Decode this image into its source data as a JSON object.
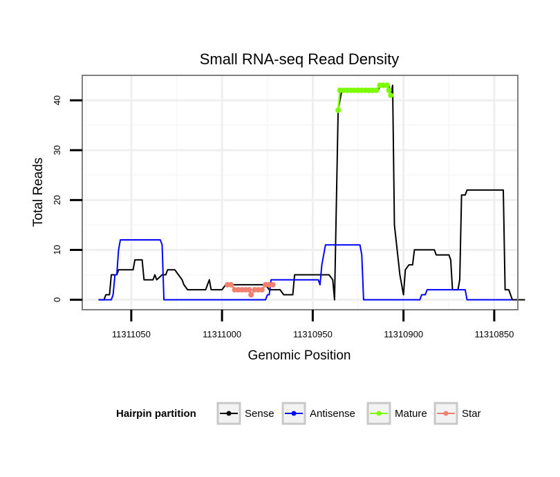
{
  "chart_data": {
    "type": "line",
    "title": "Small RNA-seq Read Density",
    "xlabel": "Genomic Position",
    "ylabel": "Total Reads",
    "xlim": [
      11311077,
      11310837
    ],
    "ylim": [
      -2,
      45
    ],
    "x_reversed": true,
    "x_ticks": [
      11311050,
      11311000,
      11310950,
      11310900,
      11310850
    ],
    "x_tick_labels": [
      "11311050",
      "11311000",
      "11310950",
      "11310900",
      "11310850"
    ],
    "y_ticks": [
      0,
      10,
      20,
      30,
      40
    ],
    "y_tick_labels": [
      "0",
      "10",
      "20",
      "30",
      "40"
    ],
    "grid": true,
    "legend": {
      "title": "Hairpin partition",
      "position": "bottom",
      "entries": [
        "Sense",
        "Antisense",
        "Mature",
        "Star"
      ]
    },
    "series": [
      {
        "name": "Sense",
        "color": "#000000",
        "markers": false,
        "points": [
          [
            11311068,
            0
          ],
          [
            11311065,
            0
          ],
          [
            11311064,
            1
          ],
          [
            11311062,
            1
          ],
          [
            11311061,
            5
          ],
          [
            11311058,
            5
          ],
          [
            11311057,
            6
          ],
          [
            11311049,
            6
          ],
          [
            11311048,
            8
          ],
          [
            11311044,
            8
          ],
          [
            11311043,
            4
          ],
          [
            11311038,
            4
          ],
          [
            11311037,
            5
          ],
          [
            11311036,
            4
          ],
          [
            11311033,
            5
          ],
          [
            11311031,
            5
          ],
          [
            11311030,
            6
          ],
          [
            11311026,
            6
          ],
          [
            11311024,
            5
          ],
          [
            11311022,
            4
          ],
          [
            11311021,
            3
          ],
          [
            11311019,
            2
          ],
          [
            11311009,
            2
          ],
          [
            11311008,
            3
          ],
          [
            11311007,
            4
          ],
          [
            11311006,
            2
          ],
          [
            11311000,
            2
          ],
          [
            11310998,
            3
          ],
          [
            11310976,
            3
          ],
          [
            11310974,
            2
          ],
          [
            11310968,
            2
          ],
          [
            11310966,
            1
          ],
          [
            11310961,
            1
          ],
          [
            11310960,
            5
          ],
          [
            11310950,
            5
          ],
          [
            11310941,
            5
          ],
          [
            11310939,
            4
          ],
          [
            11310938,
            0
          ],
          [
            11310936,
            38
          ],
          [
            11310934,
            42
          ],
          [
            11310914,
            42
          ],
          [
            11310913,
            43
          ],
          [
            11310908,
            43
          ],
          [
            11310907,
            41
          ],
          [
            11310906,
            43
          ],
          [
            11310905,
            15
          ],
          [
            11310902,
            5
          ],
          [
            11310900,
            1
          ],
          [
            11310899,
            6
          ],
          [
            11310897,
            7
          ],
          [
            11310895,
            7
          ],
          [
            11310894,
            10
          ],
          [
            11310883,
            10
          ],
          [
            11310882,
            9
          ],
          [
            11310875,
            9
          ],
          [
            11310874,
            8
          ],
          [
            11310873,
            2
          ],
          [
            11310870,
            2
          ],
          [
            11310869,
            4
          ],
          [
            11310868,
            21
          ],
          [
            11310866,
            21
          ],
          [
            11310865,
            22
          ],
          [
            11310845,
            22
          ],
          [
            11310844,
            2
          ],
          [
            11310842,
            2
          ],
          [
            11310840,
            0
          ],
          [
            11310833,
            0
          ]
        ]
      },
      {
        "name": "Antisense",
        "color": "#0000ff",
        "markers": false,
        "points": [
          [
            11311068,
            0
          ],
          [
            11311061,
            0
          ],
          [
            11311060,
            1
          ],
          [
            11311059,
            5
          ],
          [
            11311058,
            5
          ],
          [
            11311057,
            10
          ],
          [
            11311056,
            12
          ],
          [
            11311034,
            12
          ],
          [
            11311033,
            11
          ],
          [
            11311032,
            0
          ],
          [
            11310976,
            0
          ],
          [
            11310975,
            1
          ],
          [
            11310974,
            1
          ],
          [
            11310973,
            4
          ],
          [
            11310947,
            4
          ],
          [
            11310946,
            3
          ],
          [
            11310945,
            7
          ],
          [
            11310943,
            11
          ],
          [
            11310924,
            11
          ],
          [
            11310923,
            9
          ],
          [
            11310922,
            0
          ],
          [
            11310891,
            0
          ],
          [
            11310890,
            1
          ],
          [
            11310888,
            1
          ],
          [
            11310887,
            2
          ],
          [
            11310866,
            2
          ],
          [
            11310865,
            0
          ],
          [
            11310840,
            0
          ]
        ]
      },
      {
        "name": "Mature",
        "color": "#7cfc00",
        "markers": true,
        "points": [
          [
            11310936,
            38
          ],
          [
            11310935,
            42
          ],
          [
            11310933,
            42
          ],
          [
            11310931,
            42
          ],
          [
            11310929,
            42
          ],
          [
            11310927,
            42
          ],
          [
            11310925,
            42
          ],
          [
            11310923,
            42
          ],
          [
            11310921,
            42
          ],
          [
            11310919,
            42
          ],
          [
            11310917,
            42
          ],
          [
            11310915,
            42
          ],
          [
            11310913,
            43
          ],
          [
            11310911,
            43
          ],
          [
            11310909,
            43
          ],
          [
            11310908,
            42
          ],
          [
            11310907,
            41
          ]
        ]
      },
      {
        "name": "Star",
        "color": "#f08070",
        "markers": true,
        "points": [
          [
            11310997,
            3
          ],
          [
            11310995,
            3
          ],
          [
            11310993,
            2
          ],
          [
            11310991,
            2
          ],
          [
            11310989,
            2
          ],
          [
            11310987,
            2
          ],
          [
            11310985,
            2
          ],
          [
            11310984,
            1
          ],
          [
            11310982,
            2
          ],
          [
            11310980,
            2
          ],
          [
            11310978,
            2
          ],
          [
            11310976,
            3
          ],
          [
            11310974,
            3
          ],
          [
            11310972,
            3
          ]
        ]
      }
    ]
  }
}
